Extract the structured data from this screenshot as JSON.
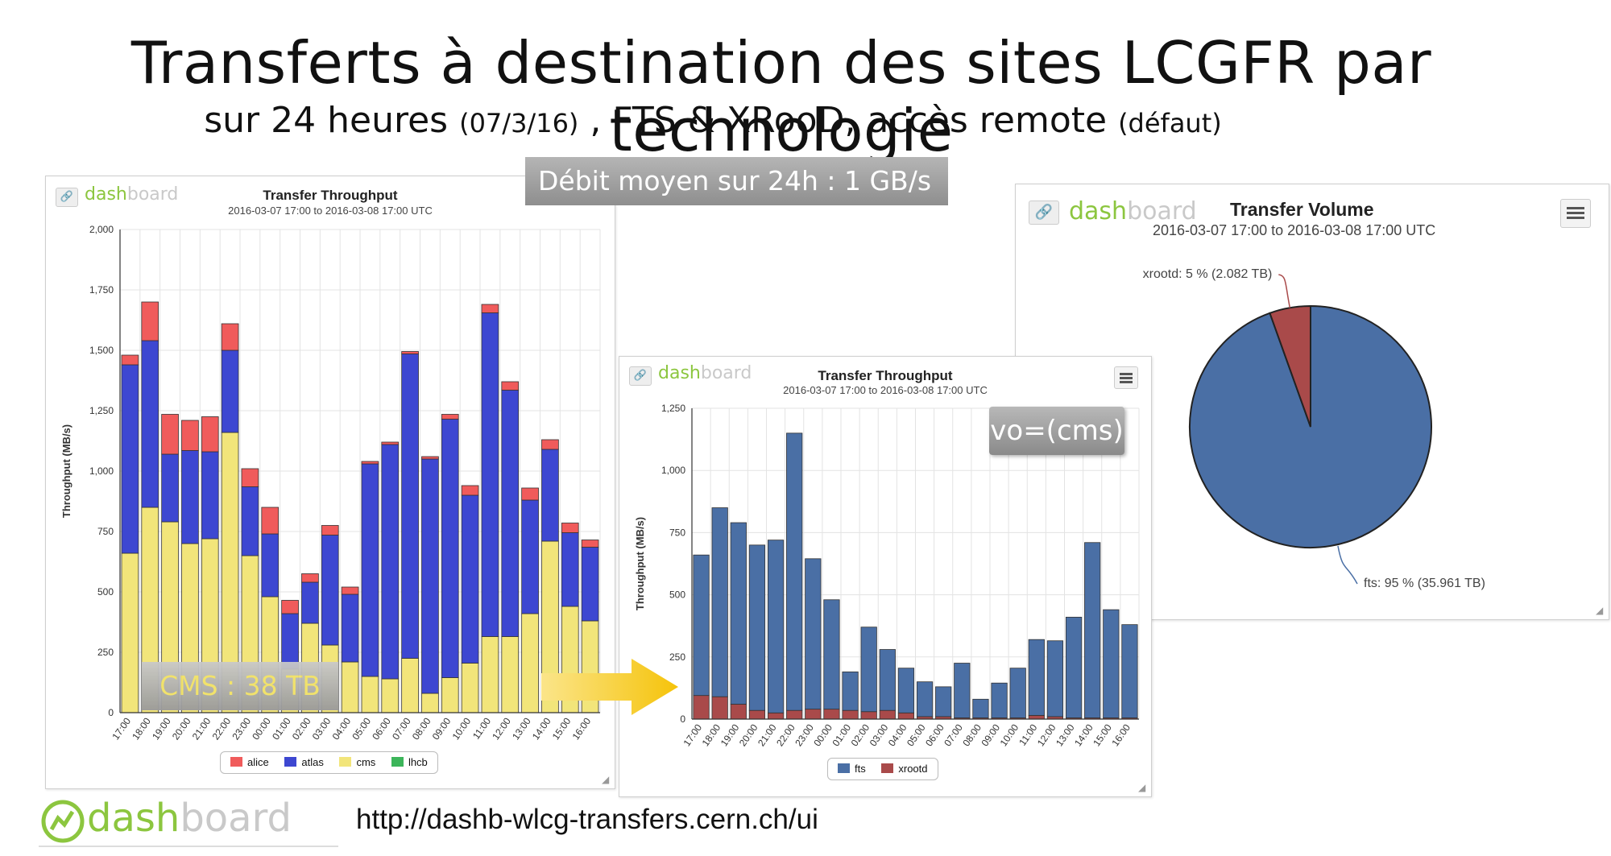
{
  "slide": {
    "title": "Transferts à destination des sites LCGFR par technologie",
    "subtitle_a": "sur 24 heures",
    "subtitle_date": "(07/3/16)",
    "subtitle_b": ", FTS & XRooD, accès remote",
    "subtitle_default": "(défaut)",
    "debit_label": "Débit moyen sur 24h : 1 GB/s",
    "vo_label": "vo=(cms)",
    "cms_label": "CMS : 38 TB",
    "url": "http://dashb-wlcg-transfers.cern.ch/ui"
  },
  "logo": {
    "part1": "dash",
    "part2": "board"
  },
  "colors": {
    "alice": "#f05b5b",
    "atlas": "#3d47d1",
    "cms": "#f2e57a",
    "lhcb": "#3cb55a",
    "fts": "#4a6fa5",
    "xrootd": "#a94a4a",
    "arrow": "#f5c30a",
    "logo": "#8cc63f"
  },
  "icons": {
    "link": "link-icon",
    "menu": "hamburger-menu-icon",
    "resize": "resize-handle-icon"
  },
  "chart_data": [
    {
      "type": "bar",
      "stacked": true,
      "title": "Transfer Throughput",
      "subtitle": "2016-03-07 17:00 to 2016-03-08 17:00 UTC",
      "ylabel": "Throughput (MB/s)",
      "ylim": [
        0,
        2000
      ],
      "yticks": [
        "0",
        "250",
        "500",
        "750",
        "1,000",
        "1,250",
        "1,500",
        "1,750",
        "2,000"
      ],
      "categories": [
        "17:00",
        "18:00",
        "19:00",
        "20:00",
        "21:00",
        "22:00",
        "23:00",
        "00:00",
        "01:00",
        "02:00",
        "03:00",
        "04:00",
        "05:00",
        "06:00",
        "07:00",
        "08:00",
        "09:00",
        "10:00",
        "11:00",
        "12:00",
        "13:00",
        "14:00",
        "15:00",
        "16:00"
      ],
      "legend": [
        "alice",
        "atlas",
        "cms",
        "lhcb"
      ],
      "series": [
        {
          "name": "cms",
          "values": [
            660,
            850,
            790,
            700,
            720,
            1160,
            650,
            480,
            180,
            370,
            280,
            210,
            150,
            140,
            225,
            80,
            145,
            205,
            315,
            315,
            410,
            710,
            440,
            380
          ]
        },
        {
          "name": "atlas",
          "values": [
            780,
            690,
            280,
            385,
            360,
            340,
            285,
            260,
            230,
            170,
            455,
            280,
            880,
            970,
            1260,
            970,
            1070,
            695,
            1340,
            1020,
            470,
            380,
            305,
            305
          ]
        },
        {
          "name": "alice",
          "values": [
            40,
            160,
            165,
            125,
            145,
            110,
            75,
            110,
            55,
            35,
            40,
            30,
            10,
            10,
            10,
            10,
            20,
            40,
            35,
            35,
            50,
            40,
            40,
            30
          ]
        },
        {
          "name": "lhcb",
          "values": [
            0,
            0,
            0,
            0,
            0,
            0,
            0,
            0,
            0,
            0,
            0,
            0,
            0,
            0,
            0,
            0,
            0,
            0,
            0,
            0,
            0,
            0,
            0,
            0
          ]
        }
      ]
    },
    {
      "type": "bar",
      "stacked": true,
      "title": "Transfer Throughput",
      "subtitle": "2016-03-07 17:00 to 2016-03-08 17:00 UTC",
      "ylabel": "Throughput (MB/s)",
      "ylim": [
        0,
        1250
      ],
      "yticks": [
        "0",
        "250",
        "500",
        "750",
        "1,000",
        "1,250"
      ],
      "categories": [
        "17:00",
        "18:00",
        "19:00",
        "20:00",
        "21:00",
        "22:00",
        "23:00",
        "00:00",
        "01:00",
        "02:00",
        "03:00",
        "04:00",
        "05:00",
        "06:00",
        "07:00",
        "08:00",
        "09:00",
        "10:00",
        "11:00",
        "12:00",
        "13:00",
        "14:00",
        "15:00",
        "16:00"
      ],
      "legend": [
        "fts",
        "xrootd"
      ],
      "series": [
        {
          "name": "xrootd",
          "values": [
            95,
            90,
            60,
            35,
            25,
            35,
            40,
            40,
            35,
            30,
            35,
            25,
            10,
            10,
            5,
            5,
            5,
            5,
            15,
            10,
            5,
            5,
            5,
            5
          ]
        },
        {
          "name": "fts",
          "values": [
            565,
            760,
            730,
            665,
            695,
            1115,
            605,
            440,
            155,
            340,
            245,
            180,
            140,
            120,
            220,
            75,
            140,
            200,
            305,
            305,
            405,
            705,
            435,
            375
          ]
        }
      ]
    },
    {
      "type": "pie",
      "title": "Transfer Volume",
      "subtitle": "2016-03-07 17:00 to 2016-03-08 17:00 UTC",
      "slices": [
        {
          "name": "fts",
          "label": "fts: 95 % (35.961 TB)",
          "value": 35.961,
          "percent": 95
        },
        {
          "name": "xrootd",
          "label": "xrootd: 5 % (2.082 TB)",
          "value": 2.082,
          "percent": 5
        }
      ]
    }
  ]
}
